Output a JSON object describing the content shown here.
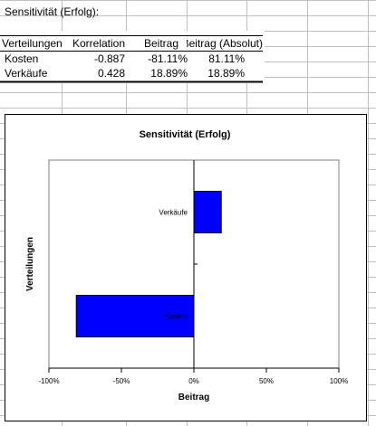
{
  "sheet": {
    "title": "Sensitivität (Erfolg):",
    "headers": [
      "Verteilungen",
      "Korrelation",
      "Beitrag",
      "Beitrag (Absolut)"
    ],
    "rows": [
      {
        "name": "Kosten",
        "korrelation": "-0.887",
        "beitrag": "-81.11%",
        "absolut": "81.11%"
      },
      {
        "name": "Verkäufe",
        "korrelation": "0.428",
        "beitrag": "18.89%",
        "absolut": "18.89%"
      }
    ]
  },
  "chart_data": {
    "type": "bar",
    "orientation": "horizontal",
    "title": "Sensitivität (Erfolg)",
    "xlabel": "Beitrag",
    "ylabel": "Verteilungen",
    "categories": [
      "Kosten",
      "Verkäufe"
    ],
    "values": [
      -81.11,
      18.89
    ],
    "xlim": [
      -100,
      100
    ],
    "xticks": [
      -100,
      -50,
      0,
      50,
      100
    ],
    "xtick_labels": [
      "-100%",
      "-50%",
      "0%",
      "50%",
      "100%"
    ],
    "bar_color": "#0000ff",
    "grid": false,
    "legend": false
  }
}
